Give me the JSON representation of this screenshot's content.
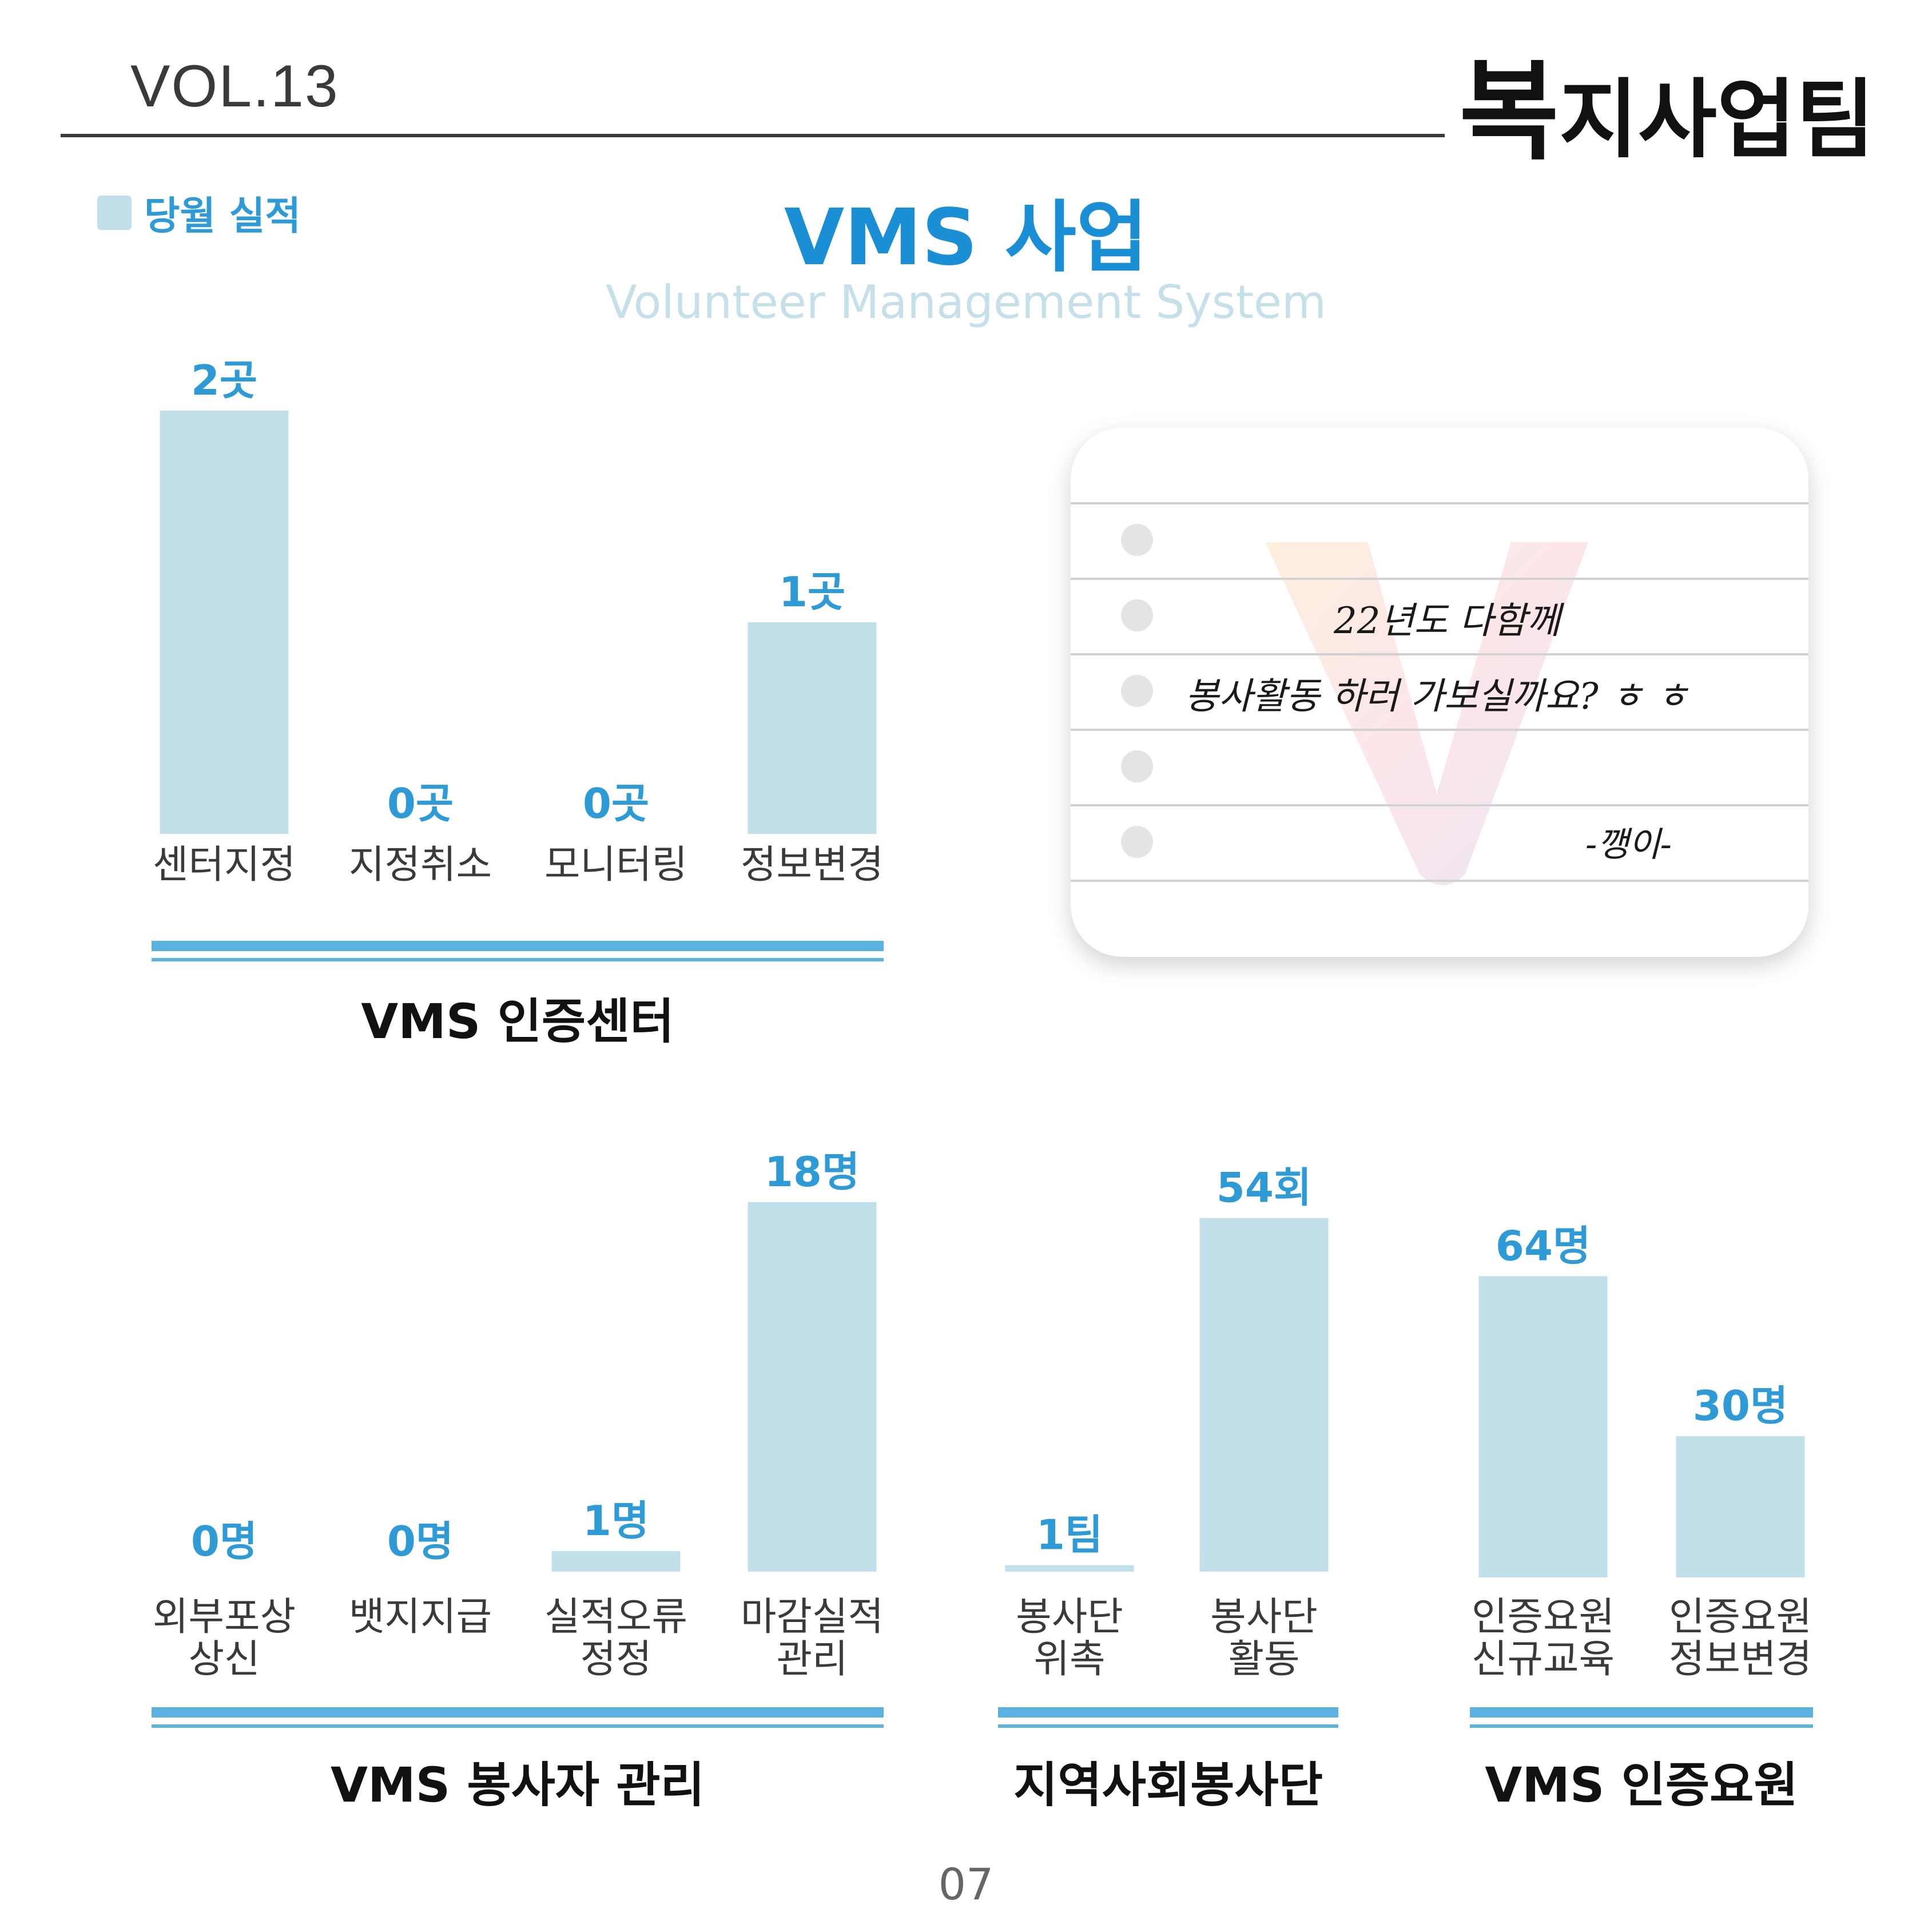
{
  "header": {
    "volume": "VOL.13",
    "team_first": "복",
    "team_rest": "지사업팀"
  },
  "legend": {
    "label": "당월 실적",
    "color": "#c2e0ea"
  },
  "title": "VMS 사업",
  "subtitle": "Volunteer Management System",
  "page_number": "07",
  "note": {
    "line1": "22년도 다함께",
    "line2": "봉사활동 하러 가보실까요? ㅎ ㅎ",
    "signature": "-깽이-"
  },
  "colors": {
    "bar": "#c2e0ea",
    "value": "#2f9bd6",
    "title": "#1a8fd6",
    "rule": "#5bb2e0"
  },
  "chart_data": [
    {
      "type": "bar",
      "title": "VMS 인증센터",
      "categories": [
        "센터지정",
        "지정취소",
        "모니터링",
        "정보변경"
      ],
      "values": [
        2,
        0,
        0,
        1
      ],
      "value_labels": [
        "2곳",
        "0곳",
        "0곳",
        "1곳"
      ],
      "ylim": [
        0,
        2
      ]
    },
    {
      "type": "bar",
      "title": "VMS 봉사자 관리",
      "categories": [
        [
          "외부포상",
          "상신"
        ],
        [
          "뱃지지급"
        ],
        [
          "실적오류",
          "정정"
        ],
        [
          "마감실적",
          "관리"
        ]
      ],
      "values": [
        0,
        0,
        1,
        18
      ],
      "value_labels": [
        "0명",
        "0명",
        "1명",
        "18명"
      ]
    },
    {
      "type": "bar",
      "title": "지역사회봉사단",
      "categories": [
        [
          "봉사단",
          "위촉"
        ],
        [
          "봉사단",
          "활동"
        ]
      ],
      "values": [
        1,
        54
      ],
      "value_labels": [
        "1팀",
        "54회"
      ]
    },
    {
      "type": "bar",
      "title": "VMS 인증요원",
      "categories": [
        [
          "인증요원",
          "신규교육"
        ],
        [
          "인증요원",
          "정보변경"
        ]
      ],
      "values": [
        64,
        30
      ],
      "value_labels": [
        "64명",
        "30명"
      ]
    }
  ]
}
